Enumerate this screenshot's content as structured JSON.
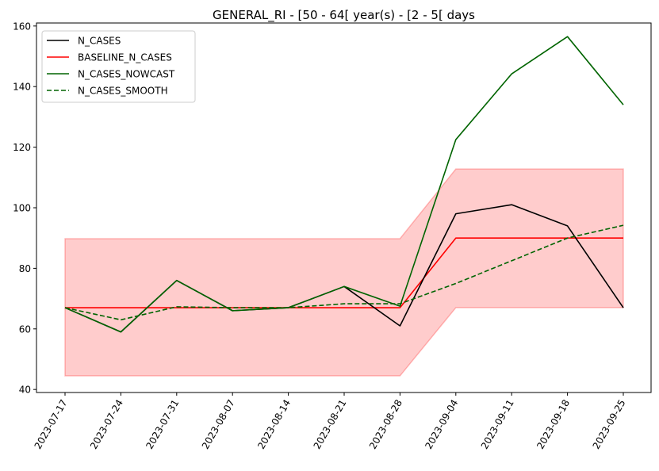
{
  "chart_data": {
    "type": "line",
    "title": "GENERAL_RI - [50 - 64[ year(s) - [2 - 5[ days",
    "xlabel": "",
    "ylabel": "",
    "x": [
      "2023-07-17",
      "2023-07-24",
      "2023-07-31",
      "2023-08-07",
      "2023-08-14",
      "2023-08-21",
      "2023-08-28",
      "2023-09-04",
      "2023-09-11",
      "2023-09-18",
      "2023-09-25"
    ],
    "ylim": [
      39,
      161
    ],
    "yticks": [
      40,
      60,
      80,
      100,
      120,
      140,
      160
    ],
    "grid": false,
    "legend_position": "upper-left",
    "series": [
      {
        "name": "N_CASES",
        "color": "#000000",
        "style": "solid",
        "values": [
          67,
          59,
          76,
          66,
          67,
          74,
          61,
          98,
          101,
          94,
          67
        ]
      },
      {
        "name": "BASELINE_N_CASES",
        "color": "#ff0000",
        "style": "solid",
        "values": [
          67,
          67,
          67,
          67,
          67,
          67,
          67,
          90,
          90,
          90,
          90
        ]
      },
      {
        "name": "N_CASES_NOWCAST",
        "color": "#006400",
        "style": "solid",
        "values": [
          67,
          59,
          76,
          66,
          67,
          74,
          67.5,
          122.5,
          144.2,
          156.5,
          134
        ]
      },
      {
        "name": "N_CASES_SMOOTH",
        "color": "#006400",
        "style": "dashed",
        "values": [
          67,
          63,
          67.3,
          67,
          67,
          68.3,
          68.3,
          75,
          82.5,
          90,
          94.2
        ]
      }
    ],
    "band": {
      "color": "#ff0000",
      "opacity": 0.2,
      "lower": [
        44.5,
        44.5,
        44.5,
        44.5,
        44.5,
        44.5,
        44.5,
        67,
        67,
        67,
        67
      ],
      "upper": [
        89.8,
        89.8,
        89.8,
        89.8,
        89.8,
        89.8,
        89.8,
        112.8,
        112.8,
        112.8,
        112.8
      ]
    }
  }
}
